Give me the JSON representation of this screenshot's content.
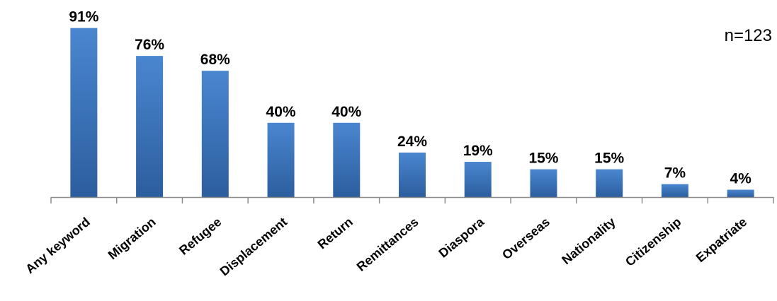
{
  "chart_data": {
    "type": "bar",
    "title": "",
    "xlabel": "",
    "ylabel": "",
    "categories": [
      "Any keyword",
      "Migration",
      "Refugee",
      "Displacement",
      "Return",
      "Remittances",
      "Diaspora",
      "Overseas",
      "Nationality",
      "Citizenship",
      "Expatriate"
    ],
    "values": [
      91,
      76,
      68,
      40,
      40,
      24,
      19,
      15,
      15,
      7,
      4
    ],
    "value_labels": [
      "91%",
      "76%",
      "68%",
      "40%",
      "40%",
      "24%",
      "19%",
      "15%",
      "15%",
      "7%",
      "4%"
    ],
    "ylim": [
      0,
      100
    ],
    "grid": false,
    "legend": "none",
    "annotation": "n=123",
    "colors": {
      "bar_top": "#4a86d0",
      "bar_bottom": "#2c5e9e",
      "axis": "#8c8c8c"
    }
  }
}
